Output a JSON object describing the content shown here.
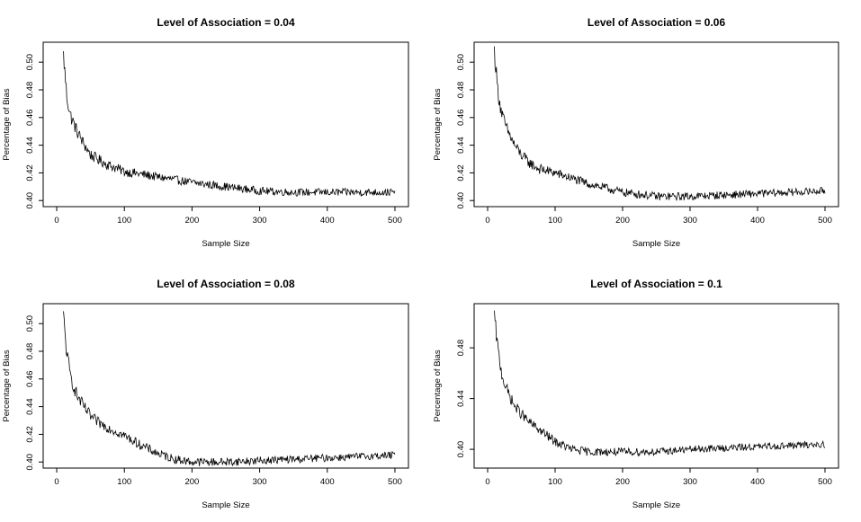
{
  "chart_data": [
    {
      "type": "line",
      "title": "Level of Association = 0.04",
      "xlabel": "Sample Size",
      "ylabel": "Percentage of Bias",
      "xlim": [
        0,
        500
      ],
      "ylim": [
        0.4,
        0.51
      ],
      "xticks": [
        0,
        100,
        200,
        300,
        400,
        500
      ],
      "xtick_labels": [
        "0",
        "100",
        "200",
        "300",
        "400",
        "500"
      ],
      "yticks": [
        0.4,
        0.42,
        0.44,
        0.46,
        0.48,
        0.5
      ],
      "ytick_labels": [
        "0.40",
        "0.42",
        "0.44",
        "0.46",
        "0.48",
        "0.50"
      ],
      "grid": false,
      "series": [
        {
          "x": [
            10,
            15,
            20,
            25,
            30,
            40,
            50,
            60,
            75,
            100,
            125,
            150,
            200,
            250,
            300,
            350,
            400,
            450,
            500
          ],
          "values": [
            0.505,
            0.475,
            0.462,
            0.456,
            0.45,
            0.441,
            0.433,
            0.43,
            0.426,
            0.421,
            0.419,
            0.417,
            0.413,
            0.41,
            0.407,
            0.406,
            0.406,
            0.406,
            0.406
          ]
        }
      ]
    },
    {
      "type": "line",
      "title": "Level of Association = 0.06",
      "xlabel": "Sample Size",
      "ylabel": "Percentage of Bias",
      "xlim": [
        0,
        500
      ],
      "ylim": [
        0.4,
        0.51
      ],
      "xticks": [
        0,
        100,
        200,
        300,
        400,
        500
      ],
      "xtick_labels": [
        "0",
        "100",
        "200",
        "300",
        "400",
        "500"
      ],
      "yticks": [
        0.4,
        0.42,
        0.44,
        0.46,
        0.48,
        0.5
      ],
      "ytick_labels": [
        "0.40",
        "0.42",
        "0.44",
        "0.46",
        "0.48",
        "0.50"
      ],
      "grid": false,
      "series": [
        {
          "x": [
            10,
            15,
            20,
            25,
            30,
            40,
            50,
            60,
            75,
            100,
            125,
            150,
            200,
            250,
            300,
            350,
            400,
            450,
            500
          ],
          "values": [
            0.508,
            0.48,
            0.465,
            0.456,
            0.45,
            0.44,
            0.433,
            0.428,
            0.423,
            0.42,
            0.416,
            0.412,
            0.406,
            0.403,
            0.403,
            0.404,
            0.405,
            0.406,
            0.407
          ]
        }
      ]
    },
    {
      "type": "line",
      "title": "Level of Association = 0.08",
      "xlabel": "Sample Size",
      "ylabel": "Percentage of Bias",
      "xlim": [
        0,
        500
      ],
      "ylim": [
        0.4,
        0.51
      ],
      "xticks": [
        0,
        100,
        200,
        300,
        400,
        500
      ],
      "xtick_labels": [
        "0",
        "100",
        "200",
        "300",
        "400",
        "500"
      ],
      "yticks": [
        0.4,
        0.42,
        0.44,
        0.46,
        0.48,
        0.5
      ],
      "ytick_labels": [
        "0.40",
        "0.42",
        "0.44",
        "0.46",
        "0.48",
        "0.50"
      ],
      "grid": false,
      "series": [
        {
          "x": [
            10,
            15,
            20,
            25,
            30,
            40,
            50,
            60,
            75,
            100,
            125,
            150,
            175,
            200,
            250,
            300,
            350,
            400,
            450,
            500
          ],
          "values": [
            0.505,
            0.478,
            0.463,
            0.455,
            0.448,
            0.44,
            0.433,
            0.429,
            0.425,
            0.419,
            0.412,
            0.406,
            0.402,
            0.4,
            0.4,
            0.401,
            0.402,
            0.403,
            0.404,
            0.405
          ]
        }
      ]
    },
    {
      "type": "line",
      "title": "Level of Association = 0.1",
      "xlabel": "Sample Size",
      "ylabel": "Percentage of Bias",
      "xlim": [
        0,
        500
      ],
      "ylim": [
        0.39,
        0.51
      ],
      "xticks": [
        0,
        100,
        200,
        300,
        400,
        500
      ],
      "xtick_labels": [
        "0",
        "100",
        "200",
        "300",
        "400",
        "500"
      ],
      "yticks": [
        0.4,
        0.44,
        0.48
      ],
      "ytick_labels": [
        "0.40",
        "0.44",
        "0.48"
      ],
      "grid": false,
      "series": [
        {
          "x": [
            10,
            15,
            20,
            25,
            30,
            40,
            50,
            60,
            75,
            100,
            125,
            150,
            200,
            250,
            300,
            350,
            400,
            450,
            500
          ],
          "values": [
            0.505,
            0.48,
            0.462,
            0.452,
            0.445,
            0.434,
            0.428,
            0.422,
            0.416,
            0.406,
            0.4,
            0.398,
            0.398,
            0.398,
            0.4,
            0.401,
            0.402,
            0.403,
            0.404
          ]
        }
      ]
    }
  ]
}
